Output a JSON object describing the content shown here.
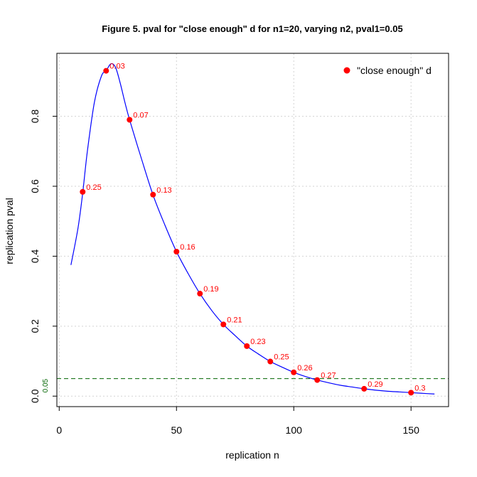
{
  "chart_data": {
    "type": "line",
    "title": "Figure 5. pval for \"close enough\" d for n1=20, varying n2, pval1=0.05",
    "xlabel": "replication n",
    "ylabel": "replication pval",
    "xlim": [
      -1,
      166
    ],
    "ylim": [
      -0.03,
      0.98
    ],
    "x_ticks": [
      0,
      50,
      100,
      150
    ],
    "y_ticks": [
      0.0,
      0.2,
      0.4,
      0.6,
      0.8
    ],
    "x_tick_labels": [
      "0",
      "50",
      "100",
      "150"
    ],
    "y_tick_labels": [
      "0.0",
      "0.2",
      "0.4",
      "0.6",
      "0.8"
    ],
    "grid": true,
    "legend_position": "top-right",
    "reference_line": {
      "y": 0.05,
      "label": "0.05",
      "color": "#006400",
      "style": "dashed"
    },
    "series": [
      {
        "kind": "curve",
        "color": "#0000ff",
        "x": [
          5,
          8,
          10,
          12,
          15,
          18,
          20,
          22,
          24,
          26,
          28,
          30,
          35,
          40,
          45,
          50,
          55,
          60,
          65,
          70,
          75,
          80,
          85,
          90,
          95,
          100,
          105,
          110,
          115,
          120,
          125,
          130,
          135,
          140,
          145,
          150,
          155,
          160
        ],
        "y": [
          0.375,
          0.48,
          0.58,
          0.7,
          0.84,
          0.915,
          0.93,
          0.95,
          0.94,
          0.895,
          0.84,
          0.79,
          0.68,
          0.575,
          0.49,
          0.413,
          0.35,
          0.293,
          0.245,
          0.205,
          0.173,
          0.143,
          0.12,
          0.099,
          0.083,
          0.068,
          0.056,
          0.046,
          0.038,
          0.031,
          0.026,
          0.021,
          0.017,
          0.014,
          0.012,
          0.01,
          0.008,
          0.006
        ]
      },
      {
        "kind": "points",
        "name": "\"close enough\" d",
        "color": "#ff0000",
        "x": [
          10,
          20,
          30,
          40,
          50,
          60,
          70,
          80,
          90,
          100,
          110,
          130,
          150
        ],
        "y": [
          0.584,
          0.93,
          0.79,
          0.576,
          0.413,
          0.293,
          0.205,
          0.143,
          0.099,
          0.068,
          0.046,
          0.021,
          0.01
        ],
        "labels": [
          "0.25",
          "0.03",
          "0.07",
          "0.13",
          "0.16",
          "0.19",
          "0.21",
          "0.23",
          "0.25",
          "0.26",
          "0.27",
          "0.29",
          "0.3"
        ]
      }
    ]
  }
}
